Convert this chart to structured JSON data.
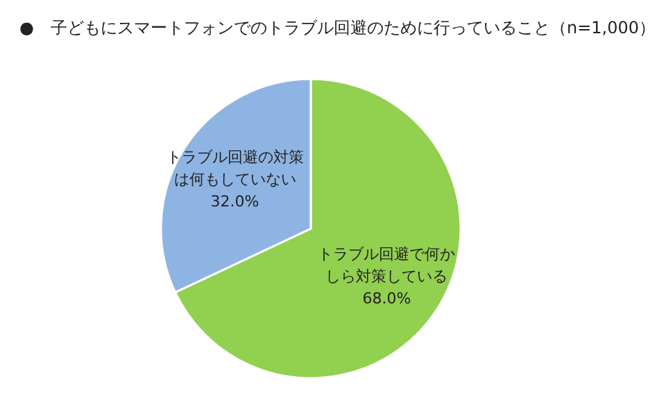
{
  "chart_data": {
    "type": "pie",
    "title": "●　子どもにスマートフォンでのトラブル回避のために行っていること（n=1,000）",
    "categories": [
      "トラブル回避で何かしら対策している",
      "トラブル回避の対策は何もしていない"
    ],
    "values": [
      68.0,
      32.0
    ],
    "value_labels": [
      "68.0%",
      "32.0%"
    ],
    "colors": [
      "#92d050",
      "#8eb4e3"
    ]
  }
}
